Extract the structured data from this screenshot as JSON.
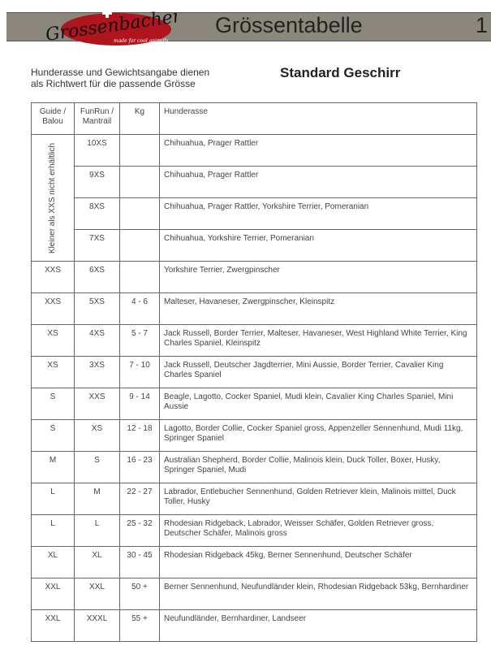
{
  "header": {
    "logo_text": "Grossenbacher",
    "logo_tagline": "made for cool animals",
    "title": "Grössentabelle",
    "page_number": "1",
    "bar_color": "#8c877c",
    "logo_color": "#b0141c"
  },
  "intro": {
    "line1": "Hunderasse und Gewichtsangabe dienen",
    "line2": "als Richtwert für die passende Grösse"
  },
  "subtitle": "Standard Geschirr",
  "table": {
    "headers": {
      "guide": "Guide / Balou",
      "funrun": "FunRun / Mantrail",
      "kg": "Kg",
      "breed": "Hunderasse"
    },
    "merged_note": "Kleiner als XXS nicht erhältlich",
    "small_rows": [
      {
        "funrun": "10XS",
        "kg": "",
        "breed": "Chihuahua, Prager Rattler"
      },
      {
        "funrun": "9XS",
        "kg": "",
        "breed": "Chihuahua, Prager Rattler"
      },
      {
        "funrun": "8XS",
        "kg": "",
        "breed": "Chihuahua, Prager Rattler, Yorkshire Terrier, Pomeranian"
      },
      {
        "funrun": "7XS",
        "kg": "",
        "breed": "Chihuahua, Yorkshire Terrier, Pomeranian"
      }
    ],
    "rows": [
      {
        "guide": "XXS",
        "funrun": "6XS",
        "kg": "",
        "breed": "Yorkshire Terrier, Zwergpinscher"
      },
      {
        "guide": "XXS",
        "funrun": "5XS",
        "kg": "4 - 6",
        "breed": "Malteser, Havaneser, Zwergpinscher, Kleinspitz"
      },
      {
        "guide": "XS",
        "funrun": "4XS",
        "kg": "5 - 7",
        "breed": "Jack Russell, Border Terrier, Malteser, Havaneser, West Highland White Terrier, King Charles Spaniel, Kleinspitz"
      },
      {
        "guide": "XS",
        "funrun": "3XS",
        "kg": "7 - 10",
        "breed": "Jack Russell, Deutscher Jagdterrier, Mini Aussie, Border Terrier, Cavalier King Charles Spaniel"
      },
      {
        "guide": "S",
        "funrun": "XXS",
        "kg": "9 - 14",
        "breed": "Beagle, Lagotto, Cocker Spaniel, Mudi klein, Cavalier King Charles Spaniel, Mini Aussie"
      },
      {
        "guide": "S",
        "funrun": "XS",
        "kg": "12 - 18",
        "breed": "Lagotto, Border Collie, Cocker Spaniel gross, Appenzeller Sennenhund, Mudi 11kg, Springer Spaniel"
      },
      {
        "guide": "M",
        "funrun": "S",
        "kg": "16 - 23",
        "breed": "Australian Shepherd, Border Collie, Malinois klein, Duck Toller, Boxer, Husky, Springer Spaniel, Mudi"
      },
      {
        "guide": "L",
        "funrun": "M",
        "kg": "22 - 27",
        "breed": "Labrador, Entlebucher Sennenhund, Golden Retriever klein, Malinois mittel, Duck Toller, Husky"
      },
      {
        "guide": "L",
        "funrun": "L",
        "kg": "25 - 32",
        "breed": "Rhodesian Ridgeback, Labrador, Weisser Schäfer, Golden Retriever gross, Deutscher Schäfer, Malinois gross"
      },
      {
        "guide": "XL",
        "funrun": "XL",
        "kg": "30 - 45",
        "breed": "Rhodesian Ridgeback 45kg, Berner Sennenhund, Deutscher Schäfer"
      },
      {
        "guide": "XXL",
        "funrun": "XXL",
        "kg": "50 +",
        "breed": "Berner Sennenhund, Neufundländer klein, Rhodesian Ridgeback 53kg, Bernhardiner"
      },
      {
        "guide": "XXL",
        "funrun": "XXXL",
        "kg": "55 +",
        "breed": "Neufundländer, Bernhardiner, Landseer"
      }
    ]
  }
}
